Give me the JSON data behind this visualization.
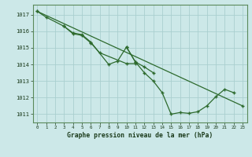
{
  "title": "Graphe pression niveau de la mer (hPa)",
  "background_color": "#cce8e8",
  "grid_color": "#aacfcf",
  "line_color": "#2d6a2d",
  "xlim": [
    -0.5,
    23.5
  ],
  "ylim": [
    1010.5,
    1017.6
  ],
  "yticks": [
    1011,
    1012,
    1013,
    1014,
    1015,
    1016,
    1017
  ],
  "xticks": [
    0,
    1,
    2,
    3,
    4,
    5,
    6,
    7,
    8,
    9,
    10,
    11,
    12,
    13,
    14,
    15,
    16,
    17,
    18,
    19,
    20,
    21,
    22,
    23
  ],
  "line1_x": [
    0,
    1,
    3,
    4,
    5,
    6,
    8,
    9,
    10,
    11,
    12,
    13
  ],
  "line1_y": [
    1017.2,
    1016.85,
    1016.3,
    1015.9,
    1015.8,
    1015.35,
    1014.0,
    1014.2,
    1015.05,
    1014.15,
    1013.85,
    1013.5
  ],
  "line2_x": [
    3,
    4,
    5,
    6,
    7,
    10,
    11
  ],
  "line2_y": [
    1016.3,
    1015.85,
    1015.75,
    1015.3,
    1014.7,
    1014.05,
    1014.05
  ],
  "line3_x": [
    0,
    23
  ],
  "line3_y": [
    1017.2,
    1011.5
  ],
  "line4_x": [
    10,
    11,
    12,
    13,
    14,
    15,
    16,
    17,
    18,
    19,
    20,
    21,
    22
  ],
  "line4_y": [
    1015.05,
    1014.15,
    1013.5,
    1013.0,
    1012.3,
    1011.0,
    1011.1,
    1011.05,
    1011.15,
    1011.5,
    1012.05,
    1012.5,
    1012.3
  ]
}
